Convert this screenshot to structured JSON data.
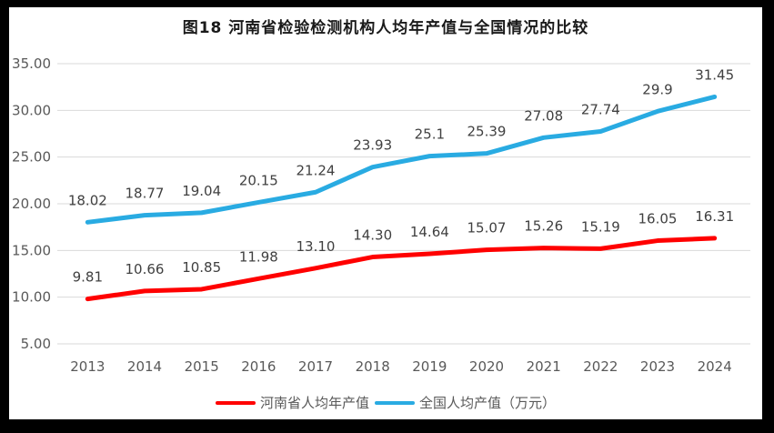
{
  "chart_data": {
    "type": "line",
    "title": "图18  河南省检验检测机构人均年产值与全国情况的比较",
    "categories": [
      "2013",
      "2014",
      "2015",
      "2016",
      "2017",
      "2018",
      "2019",
      "2020",
      "2021",
      "2022",
      "2023",
      "2024"
    ],
    "series": [
      {
        "name": "河南省人均年产值",
        "color": "#FF0000",
        "values": [
          9.81,
          10.66,
          10.85,
          11.98,
          13.1,
          14.3,
          14.64,
          15.07,
          15.26,
          15.19,
          16.05,
          16.31
        ],
        "labels": [
          "9.81",
          "10.66",
          "10.85",
          "11.98",
          "13.10",
          "14.30",
          "14.64",
          "15.07",
          "15.26",
          "15.19",
          "16.05",
          "16.31"
        ]
      },
      {
        "name": "全国人均产值（万元）",
        "color": "#29ABE2",
        "values": [
          18.02,
          18.77,
          19.04,
          20.15,
          21.24,
          23.93,
          25.1,
          25.39,
          27.08,
          27.74,
          29.9,
          31.45
        ],
        "labels": [
          "18.02",
          "18.77",
          "19.04",
          "20.15",
          "21.24",
          "23.93",
          "25.1",
          "25.39",
          "27.08",
          "27.74",
          "29.9",
          "31.45"
        ]
      }
    ],
    "ylim": [
      5,
      35
    ],
    "ytick_step": 5,
    "ytick_labels": [
      "5.00",
      "10.00",
      "15.00",
      "20.00",
      "25.00",
      "30.00",
      "35.00"
    ],
    "grid": true,
    "legend_position": "bottom",
    "colors": {
      "gridline": "#D9D9D9",
      "tick_label": "#595959",
      "data_label": "#404040",
      "title": "#1a1a1a",
      "frame": "#000000",
      "background": "#ffffff"
    }
  }
}
